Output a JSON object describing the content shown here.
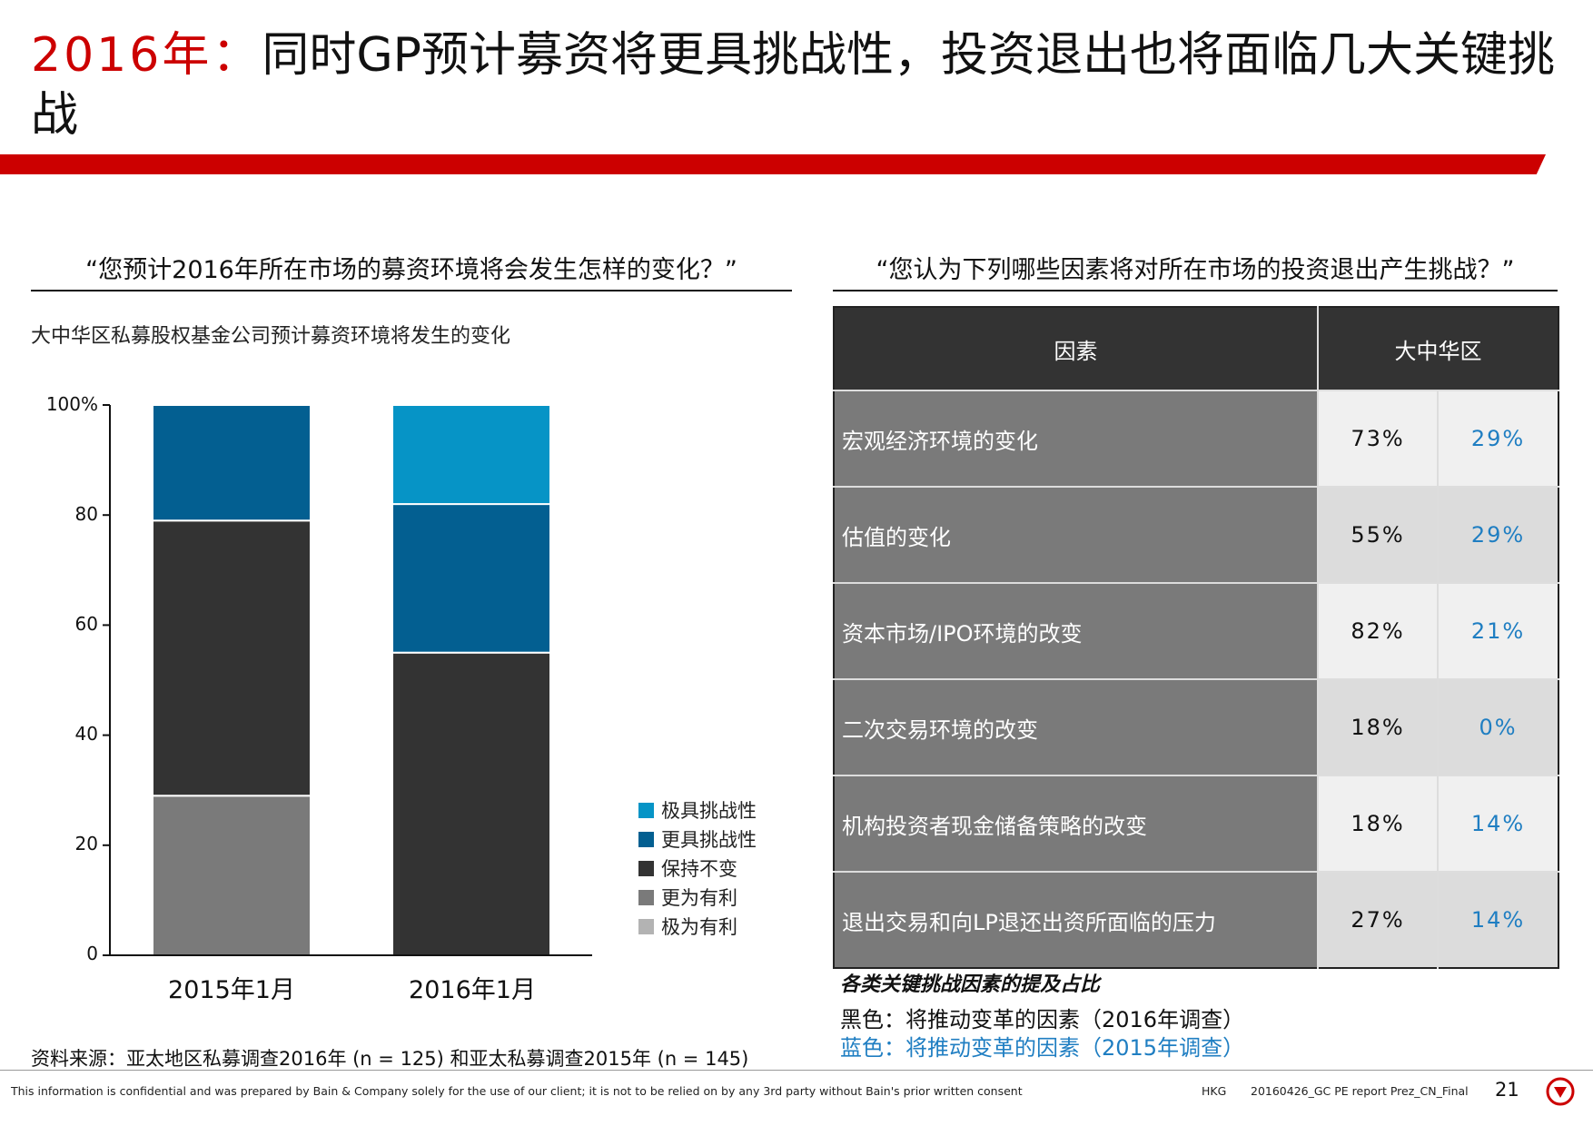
{
  "slide": {
    "title_year": "2016年：",
    "title_rest": "同时GP预计募资将更具挑战性，投资退出也将面临几大关键挑战"
  },
  "left": {
    "question": "“您预计2016年所在市场的募资环境将会发生怎样的变化？”",
    "subtitle": "大中华区私募股权基金公司预计募资环境将发生的变化"
  },
  "chart_data": {
    "type": "bar",
    "stacked": true,
    "categories": [
      "2015年1月",
      "2016年1月"
    ],
    "series": [
      {
        "name": "极为有利",
        "color": "#b3b3b3",
        "values": [
          0,
          0
        ]
      },
      {
        "name": "更为有利",
        "color": "#7a7a7a",
        "values": [
          29,
          0
        ]
      },
      {
        "name": "保持不变",
        "color": "#333333",
        "values": [
          50,
          55
        ]
      },
      {
        "name": "更具挑战性",
        "color": "#035f91",
        "values": [
          21,
          27
        ]
      },
      {
        "name": "极具挑战性",
        "color": "#0694c6",
        "values": [
          0,
          18
        ]
      }
    ],
    "legend_order": [
      "极具挑战性",
      "更具挑战性",
      "保持不变",
      "更为有利",
      "极为有利"
    ],
    "yticks": [
      "0",
      "20",
      "40",
      "60",
      "80",
      "100%"
    ],
    "ylim": [
      0,
      100
    ],
    "legend_position": "right"
  },
  "right": {
    "question": "“您认为下列哪些因素将对所在市场的投资退出产生挑战？”",
    "header_factor": "因素",
    "header_region": "大中华区",
    "rows": [
      {
        "factor": "宏观经济环境的变化",
        "y2016": "73%",
        "y2015": "29%"
      },
      {
        "factor": "估值的变化",
        "y2016": "55%",
        "y2015": "29%"
      },
      {
        "factor": "资本市场/IPO环境的改变",
        "y2016": "82%",
        "y2015": "21%"
      },
      {
        "factor": "二次交易环境的改变",
        "y2016": "18%",
        "y2015": "0%"
      },
      {
        "factor": "机构投资者现金储备策略的改变",
        "y2016": "18%",
        "y2015": "14%"
      },
      {
        "factor": "退出交易和向LP退还出资所面临的压力",
        "y2016": "27%",
        "y2015": "14%"
      }
    ],
    "caption": "各类关键挑战因素的提及占比",
    "note_black": "黑色：将推动变革的因素（2016年调查）",
    "note_blue": "蓝色：将推动变革的因素（2015年调查）"
  },
  "source": "资料来源：亚太地区私募调查2016年 (n = 125) 和亚太私募调查2015年 (n = 145)",
  "footer": {
    "confidential": "This information is confidential and was prepared by Bain & Company solely for the use of our client; it is not to be relied on by any 3rd party without Bain's prior written consent",
    "office": "HKG",
    "file": "20160426_GC PE report Prez_CN_Final",
    "page": "21"
  },
  "colors": {
    "accent": "#cc0000",
    "blue_text": "#1f7ec2"
  }
}
